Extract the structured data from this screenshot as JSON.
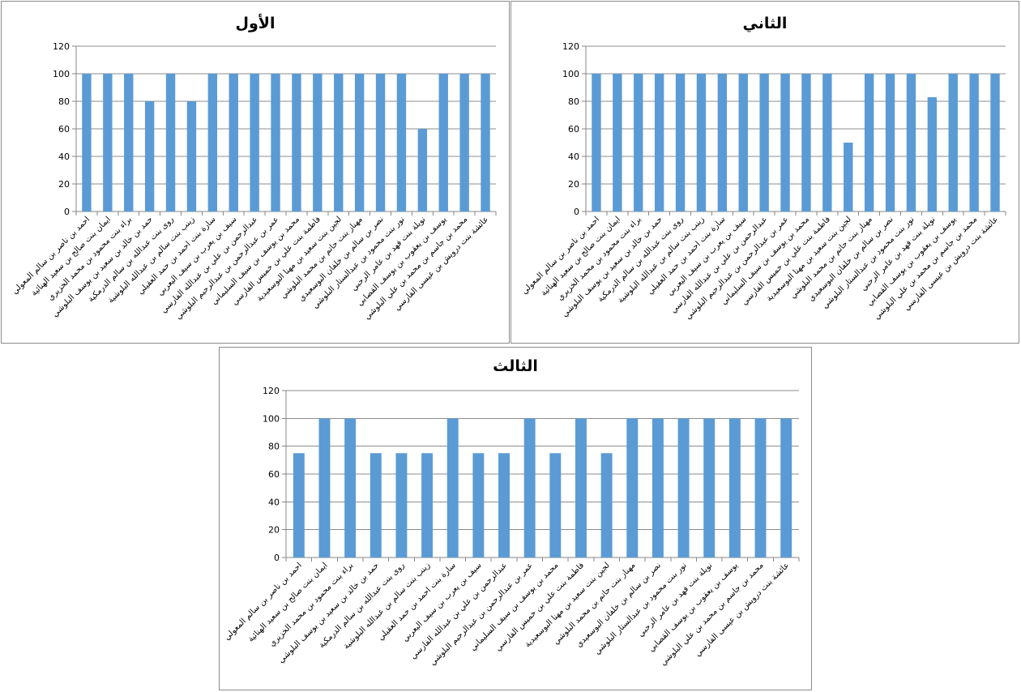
{
  "chart_data": [
    {
      "type": "bar",
      "title": "الأول",
      "xlabel": "",
      "ylabel": "",
      "ylim": [
        0,
        120
      ],
      "yticks": [
        0,
        20,
        40,
        60,
        80,
        100,
        120
      ],
      "grid": true,
      "legend": "none",
      "bar_color": "#5b9bd5",
      "categories": [
        "احمد بن ناصر بن سالم المعولي",
        "ايمان بنت صالح بن سعيد الهنائية",
        "براء بنت محمود بن محمد الخزيري",
        "حمد بن خالد بن سعيد بن يوسف البلوشي",
        "روى بنت عبدالله بن سالم الدرمكية",
        "زينب بنت سالم بن عبدالله البلوشية",
        "سارة بنت احمد بن حمد العقيلي",
        "سيف بن يعرب بن سيف اليعربي",
        "عبدالرحمن بن علي بن عبدالله الفارسي",
        "عمر بن عبدالرحمن بن عبدالرحيم البلوشي",
        "محمد بن يوسف بن سيف السليماني",
        "فاطمة بنت علي بن خميس الفارسي",
        "لجين بنت سعيد بن مهنا البوسعيدية",
        "مهناز بنت حاتم بن محمد البلوشي",
        "نصر بن سالم بن خلفان البوسعيدي",
        "نور بنت محمود بن عبدالستار البلوشي",
        "نويلة بنت فهد بن عامر الرحبي",
        "يوسف بن يعقوب بن يوسف القصابي",
        "محمد بن جاسم بن محمد بن علي البلوشي",
        "عائشة بنت درويش بن عيسى الفارسي"
      ],
      "values": [
        100,
        100,
        100,
        80,
        100,
        80,
        100,
        100,
        100,
        100,
        100,
        100,
        100,
        100,
        100,
        100,
        60,
        100,
        100,
        100
      ]
    },
    {
      "type": "bar",
      "title": "الثاني",
      "xlabel": "",
      "ylabel": "",
      "ylim": [
        0,
        120
      ],
      "yticks": [
        0,
        20,
        40,
        60,
        80,
        100,
        120
      ],
      "grid": true,
      "legend": "none",
      "bar_color": "#5b9bd5",
      "categories": [
        "احمد بن ناصر بن سالم المعولي",
        "ايمان بنت صالح بن سعيد الهنائية",
        "براء بنت محمود بن محمد الخزيري",
        "حمد بن خالد بن سعيد بن يوسف البلوشي",
        "روى بنت عبدالله بن سالم الدرمكية",
        "زينب بنت سالم بن عبدالله البلوشية",
        "سارة بنت احمد بن حمد العقيلي",
        "سيف بن يعرب بن سيف اليعربي",
        "عبدالرحمن بن علي بن عبدالله الفارسي",
        "عمر بن عبدالرحمن بن عبدالرحيم البلوشي",
        "محمد بن يوسف بن سيف السليماني",
        "فاطمة بنت علي بن خميس الفارسي",
        "لجين بنت سعيد بن مهنا البوسعيدية",
        "مهناز بنت حاتم بن محمد البلوشي",
        "نصر بن سالم بن خلفان البوسعيدي",
        "نور بنت محمود بن عبدالستار البلوشي",
        "نويلة بنت فهد بن عامر الرحبي",
        "يوسف بن يعقوب بن يوسف القصابي",
        "محمد بن جاسم بن محمد بن علي البلوشي",
        "عائشة بنت درويش بن عيسى الفارسي"
      ],
      "values": [
        100,
        100,
        100,
        100,
        100,
        100,
        100,
        100,
        100,
        100,
        100,
        100,
        50,
        100,
        100,
        100,
        83,
        100,
        100,
        100
      ]
    },
    {
      "type": "bar",
      "title": "الثالث",
      "xlabel": "",
      "ylabel": "",
      "ylim": [
        0,
        120
      ],
      "yticks": [
        0,
        20,
        40,
        60,
        80,
        100,
        120
      ],
      "grid": true,
      "legend": "none",
      "bar_color": "#5b9bd5",
      "categories": [
        "احمد بن ناصر بن سالم المعولي",
        "ايمان بنت صالح بن سعيد الهنائية",
        "براء بنت محمود بن محمد الخزيري",
        "حمد بن خالد بن سعيد بن يوسف البلوشي",
        "روى بنت عبدالله بن سالم الدرمكية",
        "زينب بنت سالم بن عبدالله البلوشية",
        "سارة بنت احمد بن حمد العقيلي",
        "سيف بن يعرب بن سيف اليعربي",
        "عبدالرحمن بن علي بن عبدالله الفارسي",
        "عمر بن عبدالرحمن بن عبدالرحيم البلوشي",
        "محمد بن يوسف بن سيف السليماني",
        "فاطمة بنت علي بن خميس الفارسي",
        "لجين بنت سعيد بن مهنا البوسعيدية",
        "مهناز بنت حاتم بن محمد البلوشي",
        "نصر بن سالم بن خلفان البوسعيدي",
        "نور بنت محمود بن عبدالستار البلوشي",
        "نويلة بنت فهد بن عامر الرحبي",
        "يوسف بن يعقوب بن يوسف القصابي",
        "محمد بن جاسم بن محمد بن علي البلوشي",
        "عائشة بنت درويش بن عيسى الفارسي"
      ],
      "values": [
        75,
        100,
        100,
        75,
        75,
        75,
        100,
        75,
        75,
        100,
        75,
        100,
        75,
        100,
        100,
        100,
        100,
        100,
        100,
        100
      ]
    }
  ]
}
